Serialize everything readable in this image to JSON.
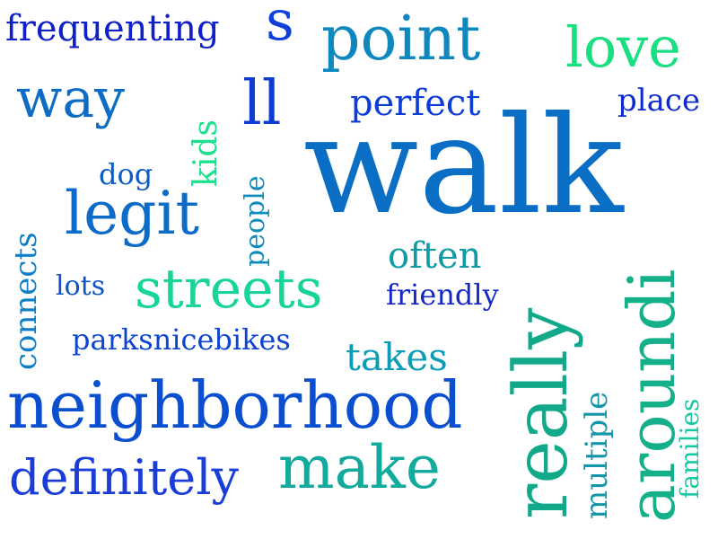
{
  "words": [
    {
      "text": "walk",
      "color": "#0a6fc4"
    },
    {
      "text": "neighborhood",
      "color": "#0a4fd0"
    },
    {
      "text": "really",
      "color": "#12a88a"
    },
    {
      "text": "aroundi",
      "color": "#14b08a"
    },
    {
      "text": "make",
      "color": "#11aa9c"
    },
    {
      "text": "definitely",
      "color": "#1a3dd8"
    },
    {
      "text": "point",
      "color": "#0f88c0"
    },
    {
      "text": "streets",
      "color": "#16d49a"
    },
    {
      "text": "love",
      "color": "#18e080"
    },
    {
      "text": "legit",
      "color": "#0c6cc8"
    },
    {
      "text": "way",
      "color": "#0d6cc6"
    },
    {
      "text": "frequenting",
      "color": "#1020c8"
    },
    {
      "text": "s",
      "color": "#1040d8"
    },
    {
      "text": "ll",
      "color": "#0e3bd0"
    },
    {
      "text": "perfect",
      "color": "#0d3cd6"
    },
    {
      "text": "place",
      "color": "#0e2ad0"
    },
    {
      "text": "often",
      "color": "#0f9aa6"
    },
    {
      "text": "friendly",
      "color": "#1528c6"
    },
    {
      "text": "takes",
      "color": "#0c9cb8"
    },
    {
      "text": "connects",
      "color": "#0f7ec8"
    },
    {
      "text": "multiple",
      "color": "#1397a8"
    },
    {
      "text": "families",
      "color": "#14c8a0"
    },
    {
      "text": "kids",
      "color": "#1ce08c"
    },
    {
      "text": "people",
      "color": "#0f8cbc"
    },
    {
      "text": "dog",
      "color": "#0c5cc4"
    },
    {
      "text": "lots",
      "color": "#0e54c8"
    },
    {
      "text": "parksnicebikes",
      "color": "#0d44d0"
    }
  ]
}
